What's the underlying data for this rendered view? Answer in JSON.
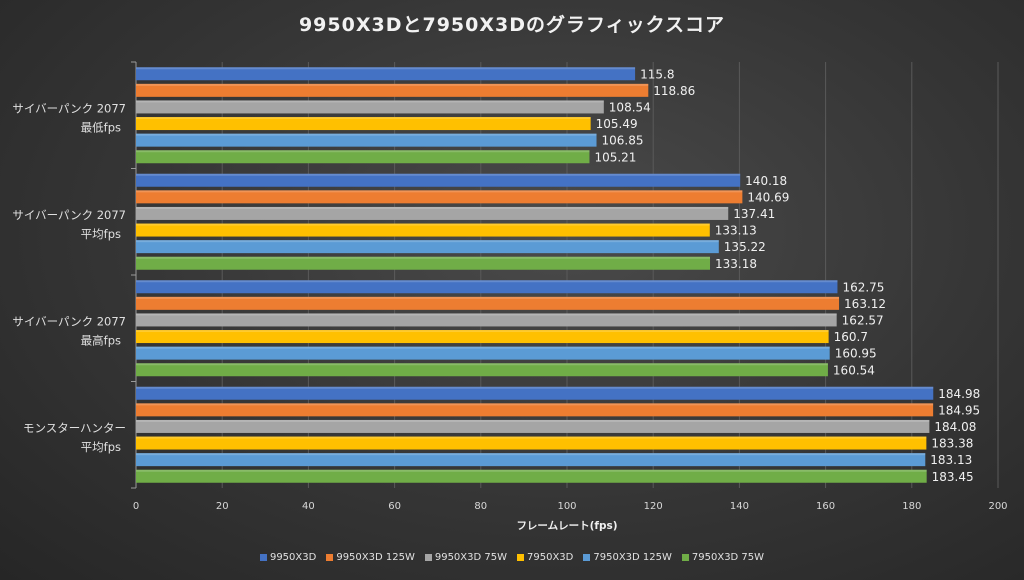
{
  "chart_data": {
    "type": "bar",
    "orientation": "horizontal",
    "title": "9950X3Dと7950X3Dのグラフィックスコア",
    "xlabel": "フレームレート(fps)",
    "ylabel": "",
    "xlim": [
      0,
      200
    ],
    "xticks": [
      0,
      20,
      40,
      60,
      80,
      100,
      120,
      140,
      160,
      180,
      200
    ],
    "grid": true,
    "legend_position": "bottom",
    "categories": [
      {
        "line1": "サイバーパンク 2077",
        "line2": "最低fps"
      },
      {
        "line1": "サイバーパンク 2077",
        "line2": "平均fps"
      },
      {
        "line1": "サイバーパンク 2077",
        "line2": "最高fps"
      },
      {
        "line1": "モンスターハンター",
        "line2": "平均fps"
      }
    ],
    "series": [
      {
        "name": "9950X3D",
        "color": "#4472c4",
        "values": [
          115.8,
          140.18,
          162.75,
          184.98
        ],
        "labels": [
          "115.8",
          "140.18",
          "162.75",
          "184.98"
        ]
      },
      {
        "name": "9950X3D 125W",
        "color": "#ed7d31",
        "values": [
          118.86,
          140.69,
          163.12,
          184.95
        ],
        "labels": [
          "118.86",
          "140.69",
          "163.12",
          "184.95"
        ]
      },
      {
        "name": "9950X3D 75W",
        "color": "#a5a5a5",
        "values": [
          108.54,
          137.41,
          162.57,
          184.08
        ],
        "labels": [
          "108.54",
          "137.41",
          "162.57",
          "184.08"
        ]
      },
      {
        "name": "7950X3D",
        "color": "#ffc000",
        "values": [
          105.49,
          133.13,
          160.7,
          183.38
        ],
        "labels": [
          "105.49",
          "133.13",
          "160.7",
          "183.38"
        ]
      },
      {
        "name": "7950X3D 125W",
        "color": "#5b9bd5",
        "values": [
          106.85,
          135.22,
          160.95,
          183.13
        ],
        "labels": [
          "106.85",
          "135.22",
          "160.95",
          "183.13"
        ]
      },
      {
        "name": "7950X3D 75W",
        "color": "#70ad47",
        "values": [
          105.21,
          133.18,
          160.54,
          183.45
        ],
        "labels": [
          "105.21",
          "133.18",
          "160.54",
          "183.45"
        ]
      }
    ]
  }
}
